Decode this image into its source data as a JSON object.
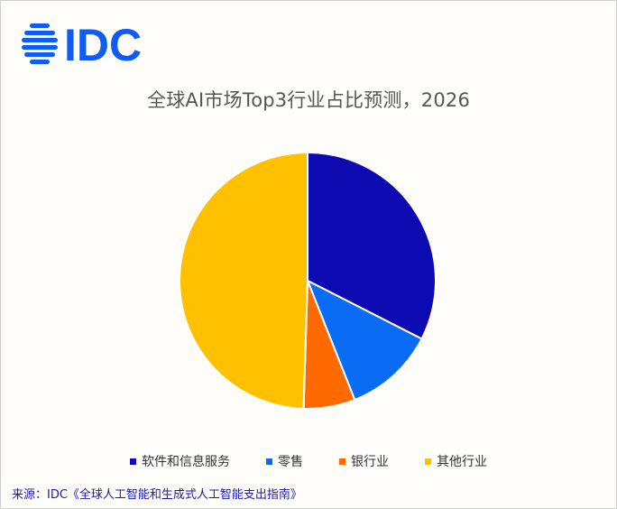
{
  "brand": {
    "logo_text": "IDC",
    "logo_color": "#0e5cf2"
  },
  "chart_data": {
    "type": "pie",
    "title": "全球AI市场Top3行业占比预测，2026",
    "series": [
      {
        "name": "软件和信息服务",
        "value": 32.5,
        "color": "#0c0ab0"
      },
      {
        "name": "零售",
        "value": 11.5,
        "color": "#0a6cf5"
      },
      {
        "name": "银行业",
        "value": 6.5,
        "color": "#ff6a00"
      },
      {
        "name": "其他行业",
        "value": 49.5,
        "color": "#ffc000"
      }
    ],
    "start_angle_deg": 0,
    "direction": "clockwise",
    "legend_position": "bottom"
  },
  "source": "来源：IDC《全球人工智能和生成式人工智能支出指南》"
}
